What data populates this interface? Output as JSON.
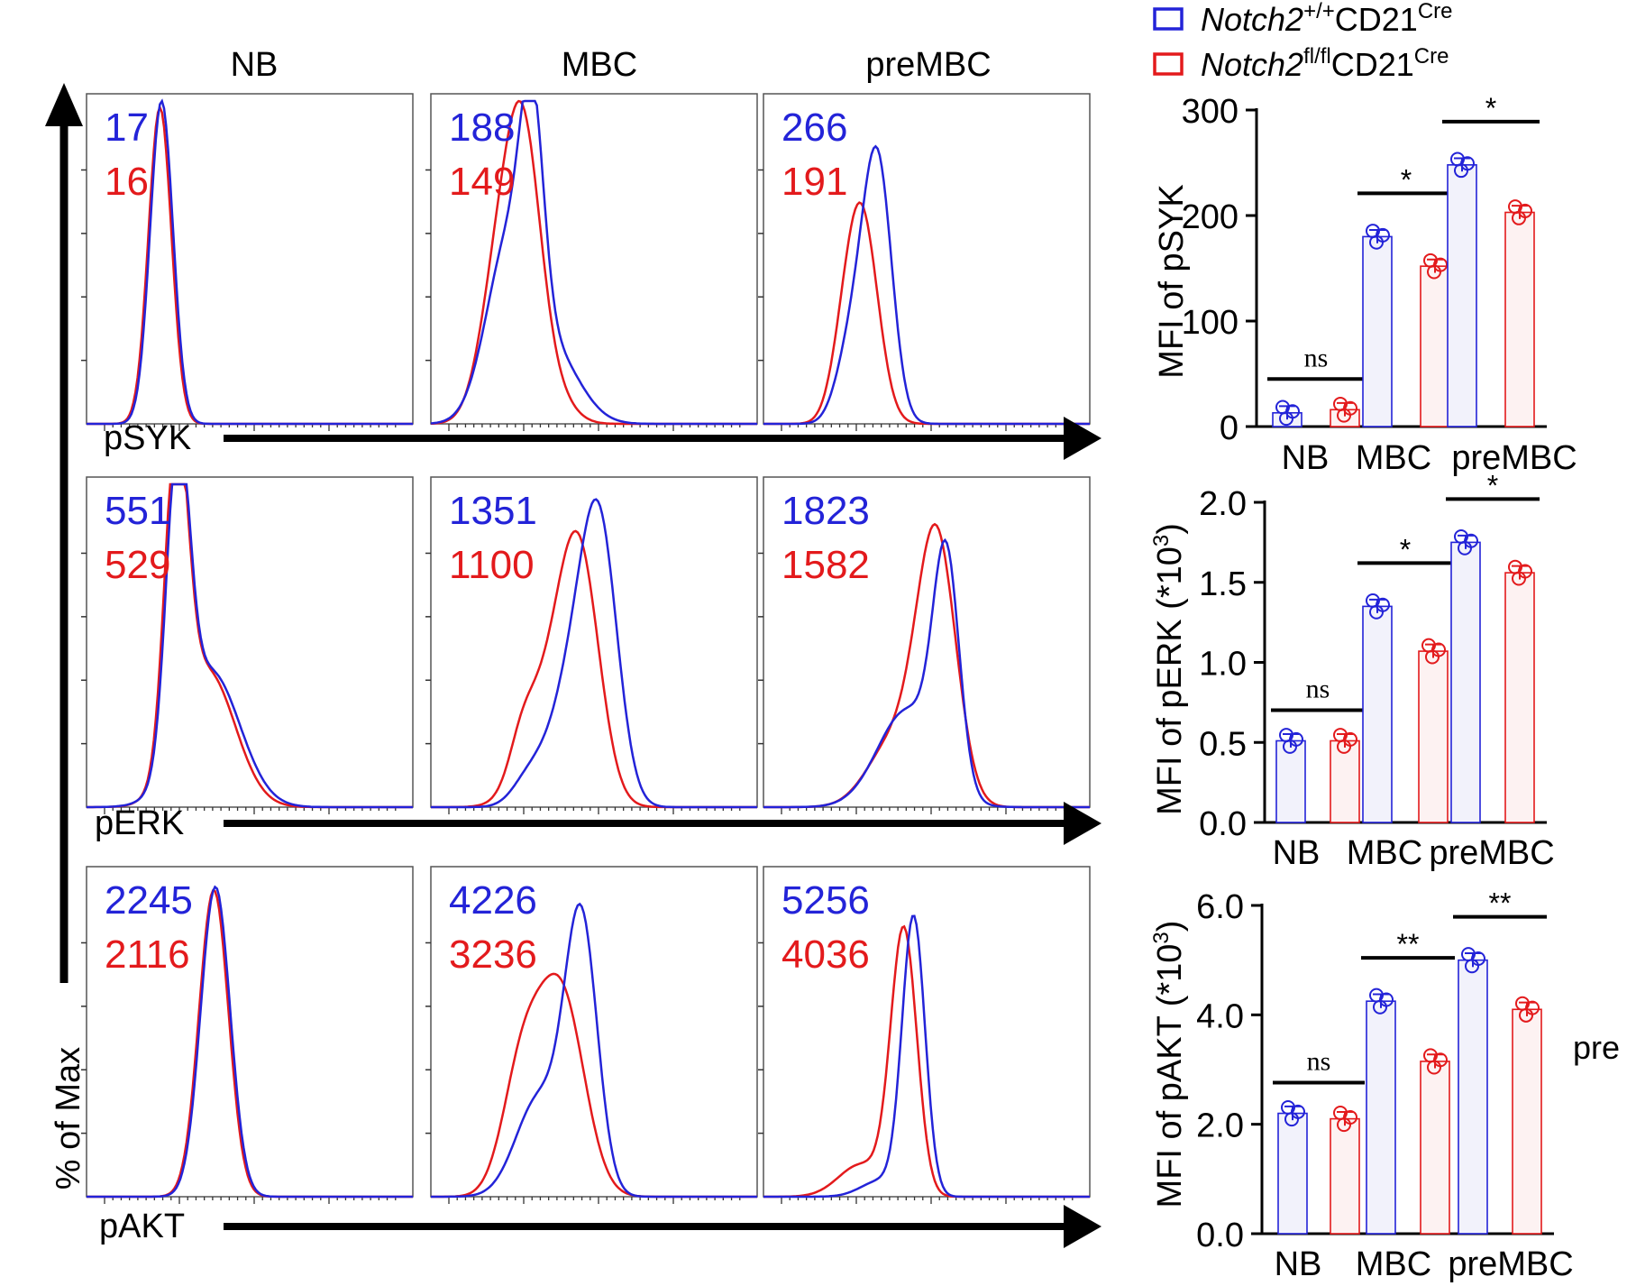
{
  "legend": {
    "items": [
      {
        "gene": "Notch2",
        "sup": "+/+",
        "driver": "CD21",
        "driver_sup": "Cre",
        "color": "#2323d8"
      },
      {
        "gene": "Notch2",
        "sup": "fl/fl",
        "driver": "CD21",
        "driver_sup": "Cre",
        "color": "#e31a1c"
      }
    ]
  },
  "colors": {
    "wt": "#2323d8",
    "ko": "#e31a1c",
    "wt_fill": "#f2f2fb",
    "ko_fill": "#fdf2f2"
  },
  "histograms": {
    "column_labels": [
      "NB",
      "MBC",
      "preMBC"
    ],
    "y_axis_label": "% of Max",
    "rows": [
      {
        "marker": "pSYK",
        "values": [
          {
            "wt": "17",
            "ko": "16"
          },
          {
            "wt": "188",
            "ko": "149"
          },
          {
            "wt": "266",
            "ko": "191"
          }
        ]
      },
      {
        "marker": "pERK",
        "values": [
          {
            "wt": "551",
            "ko": "529"
          },
          {
            "wt": "1351",
            "ko": "1100"
          },
          {
            "wt": "1823",
            "ko": "1582"
          }
        ]
      },
      {
        "marker": "pAKT",
        "values": [
          {
            "wt": "2245",
            "ko": "2116"
          },
          {
            "wt": "4226",
            "ko": "3236"
          },
          {
            "wt": "5256",
            "ko": "4036"
          }
        ]
      }
    ]
  },
  "chart_data": [
    {
      "type": "bar",
      "title": "",
      "categories": [
        "NB",
        "MBC",
        "preMBC"
      ],
      "ylabel": "MFI of pSYK",
      "ylim": [
        0,
        300
      ],
      "yticks": [
        "0",
        "100",
        "200",
        "300"
      ],
      "tick_values": [
        0,
        100,
        200,
        300
      ],
      "series": [
        {
          "name": "Notch2+/+CD21Cre",
          "values": [
            13,
            180,
            248
          ]
        },
        {
          "name": "Notch2fl/flCD21Cre",
          "values": [
            16,
            152,
            203
          ]
        }
      ],
      "significance": [
        "ns",
        "*",
        "*"
      ]
    },
    {
      "type": "bar",
      "title": "",
      "categories": [
        "NB",
        "MBC",
        "preMBC"
      ],
      "ylabel": "MFI of pERK (*10",
      "ylabel_sup": "3",
      "ylabel_tail": ")",
      "ylim": [
        0,
        2.0
      ],
      "yticks": [
        "0.0",
        "0.5",
        "1.0",
        "1.5",
        "2.0"
      ],
      "tick_values": [
        0,
        0.5,
        1.0,
        1.5,
        2.0
      ],
      "series": [
        {
          "name": "Notch2+/+CD21Cre",
          "values": [
            0.51,
            1.35,
            1.75
          ]
        },
        {
          "name": "Notch2fl/flCD21Cre",
          "values": [
            0.51,
            1.07,
            1.56
          ]
        }
      ],
      "significance": [
        "ns",
        "*",
        "*"
      ]
    },
    {
      "type": "bar",
      "title": "",
      "categories": [
        "NB",
        "MBC",
        "preMBC"
      ],
      "ylabel": "MFI of pAKT (*10",
      "ylabel_sup": "3",
      "ylabel_tail": ")",
      "ylim": [
        0,
        6.0
      ],
      "yticks": [
        "0.0",
        "2.0",
        "4.0",
        "6.0"
      ],
      "tick_values": [
        0,
        2.0,
        4.0,
        6.0
      ],
      "series": [
        {
          "name": "Notch2+/+CD21Cre",
          "values": [
            2.2,
            4.25,
            5.0
          ]
        },
        {
          "name": "Notch2fl/flCD21Cre",
          "values": [
            2.1,
            3.15,
            4.1
          ]
        }
      ],
      "significance": [
        "ns",
        "**",
        "**"
      ]
    }
  ],
  "cropped_text": "pre"
}
